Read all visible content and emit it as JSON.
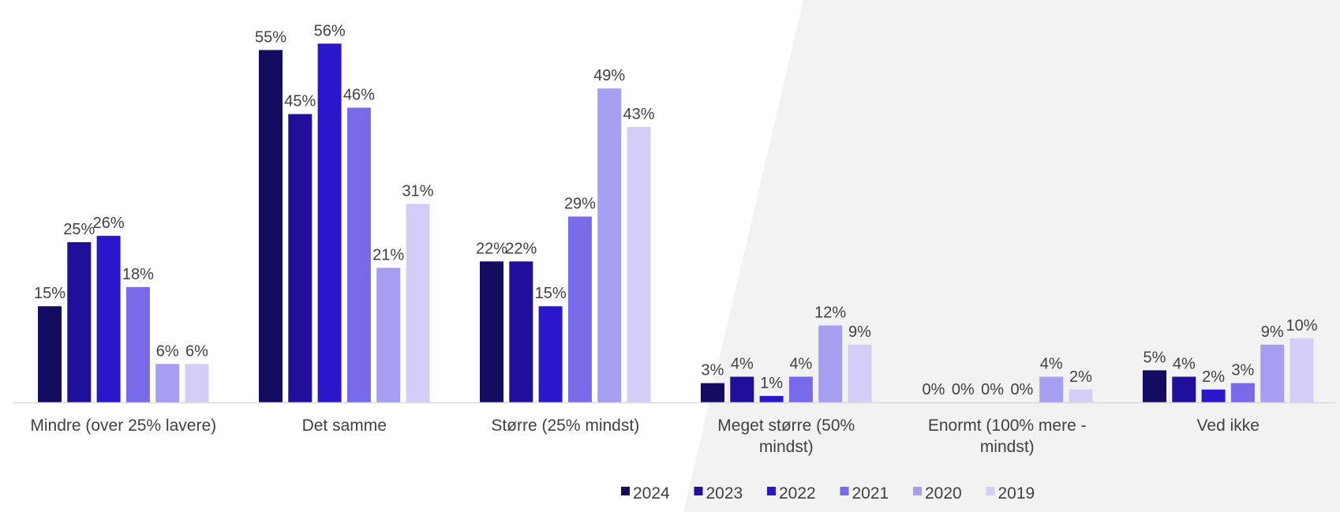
{
  "chart_data": {
    "type": "bar",
    "title": "",
    "xlabel": "",
    "ylabel": "",
    "ylim": [
      0,
      60
    ],
    "grid": false,
    "legend_position": "bottom-center",
    "categories": [
      [
        "Mindre (over 25% lavere)"
      ],
      [
        "Det samme"
      ],
      [
        "Større (25% mindst)"
      ],
      [
        "Meget større (50%",
        "mindst)"
      ],
      [
        "Enormt (100% mere -",
        "mindst)"
      ],
      [
        "Ved ikke"
      ]
    ],
    "series": [
      {
        "name": "2024",
        "color": "#140c60",
        "values": [
          15,
          55,
          22,
          3,
          0,
          5
        ]
      },
      {
        "name": "2023",
        "color": "#1f0f9a",
        "values": [
          25,
          45,
          22,
          4,
          0,
          4
        ]
      },
      {
        "name": "2022",
        "color": "#2a17cc",
        "values": [
          26,
          56,
          15,
          1,
          0,
          2
        ]
      },
      {
        "name": "2021",
        "color": "#786ae8",
        "values": [
          18,
          46,
          29,
          4,
          0,
          3
        ]
      },
      {
        "name": "2020",
        "color": "#a69ef0",
        "values": [
          6,
          21,
          49,
          12,
          4,
          9
        ]
      },
      {
        "name": "2019",
        "color": "#d2cef8",
        "values": [
          6,
          31,
          43,
          9,
          2,
          10
        ]
      }
    ],
    "value_suffix": "%"
  }
}
